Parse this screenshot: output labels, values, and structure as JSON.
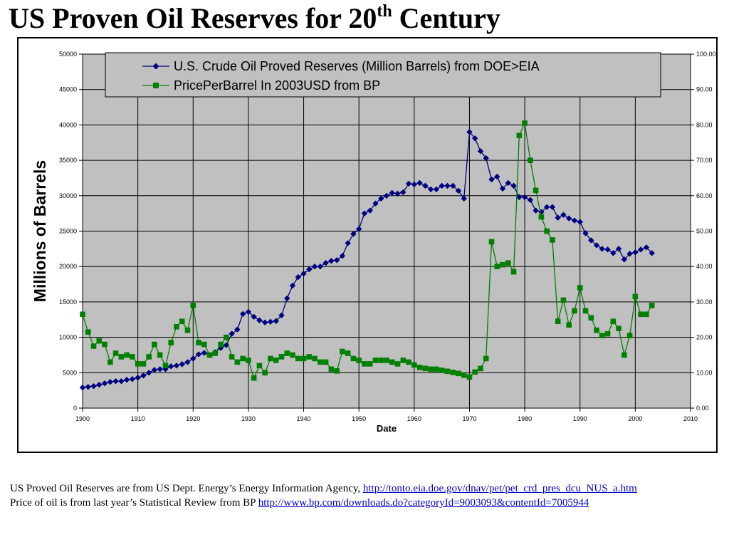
{
  "title": {
    "main": "US Proven Oil Reserves for 20",
    "sup": "th",
    "end": " Century"
  },
  "caption": {
    "line1_text": "US Proved Oil Reserves are from US Dept. Energy’s Energy Information Agency, ",
    "line1_link": "http://tonto.eia.doe.gov/dnav/pet/pet_crd_pres_dcu_NUS_a.htm",
    "line2_text": "Price of oil is from last year’s Statistical Review from BP ",
    "line2_link": "http://www.bp.com/downloads.do?categoryId=9003093&contentId=7005944"
  },
  "chart_data": {
    "type": "line",
    "title": "",
    "xlabel": "Date",
    "ylabel": "Millions of Barrels",
    "xlim": [
      1900,
      2010
    ],
    "ylim": [
      0,
      50000
    ],
    "y2lim": [
      0,
      100
    ],
    "x_ticks": [
      "1900",
      "1910",
      "1920",
      "1930",
      "1940",
      "1950",
      "1960",
      "1970",
      "1980",
      "1990",
      "2000",
      "2010"
    ],
    "y_ticks": [
      "0",
      "5000",
      "10000",
      "15000",
      "20000",
      "25000",
      "30000",
      "35000",
      "40000",
      "45000",
      "50000"
    ],
    "y2_ticks": [
      "0.00",
      "10.00",
      "20.00",
      "30.00",
      "40.00",
      "50.00",
      "60.00",
      "70.00",
      "80.00",
      "90.00",
      "100.00"
    ],
    "grid": true,
    "plot_background": "#c0c0c0",
    "legend_position": "top",
    "series": [
      {
        "name": "U.S. Crude Oil Proved Reserves (Million Barrels) from DOE>EIA",
        "axis": "left",
        "color": "#000080",
        "marker": "diamond",
        "x": [
          1900,
          1901,
          1902,
          1903,
          1904,
          1905,
          1906,
          1907,
          1908,
          1909,
          1910,
          1911,
          1912,
          1913,
          1914,
          1915,
          1916,
          1917,
          1918,
          1919,
          1920,
          1921,
          1922,
          1923,
          1924,
          1925,
          1926,
          1927,
          1928,
          1929,
          1930,
          1931,
          1932,
          1933,
          1934,
          1935,
          1936,
          1937,
          1938,
          1939,
          1940,
          1941,
          1942,
          1943,
          1944,
          1945,
          1946,
          1947,
          1948,
          1949,
          1950,
          1951,
          1952,
          1953,
          1954,
          1955,
          1956,
          1957,
          1958,
          1959,
          1960,
          1961,
          1962,
          1963,
          1964,
          1965,
          1966,
          1967,
          1968,
          1969,
          1970,
          1971,
          1972,
          1973,
          1974,
          1975,
          1976,
          1977,
          1978,
          1979,
          1980,
          1981,
          1982,
          1983,
          1984,
          1985,
          1986,
          1987,
          1988,
          1989,
          1990,
          1991,
          1992,
          1993,
          1994,
          1995,
          1996,
          1997,
          1998,
          1999,
          2000,
          2001,
          2002,
          2003
        ],
        "values": [
          2900,
          3000,
          3100,
          3300,
          3500,
          3700,
          3800,
          3800,
          4000,
          4100,
          4300,
          4600,
          5000,
          5400,
          5500,
          5500,
          5900,
          6000,
          6200,
          6500,
          7000,
          7600,
          7800,
          7500,
          7900,
          8500,
          8900,
          10500,
          11100,
          13300,
          13600,
          12900,
          12400,
          12100,
          12200,
          12300,
          13100,
          15500,
          17300,
          18500,
          19000,
          19600,
          20000,
          20000,
          20500,
          20800,
          20900,
          21500,
          23300,
          24600,
          25300,
          27500,
          27900,
          28900,
          29600,
          30000,
          30400,
          30300,
          30500,
          31700,
          31600,
          31800,
          31400,
          30900,
          30900,
          31400,
          31400,
          31400,
          30700,
          29600,
          39000,
          38100,
          36300,
          35300,
          32300,
          32700,
          31000,
          31800,
          31400,
          29800,
          29800,
          29400,
          27900,
          27700,
          28400,
          28400,
          26900,
          27300,
          26800,
          26500,
          26300,
          24700,
          23700,
          23000,
          22500,
          22400,
          21900,
          22500,
          21000,
          21800,
          22000,
          22400,
          22700,
          21900
        ]
      },
      {
        "name": "PricePerBarrel In 2003USD from BP",
        "axis": "right",
        "color": "#008000",
        "marker": "square",
        "x": [
          1900,
          1901,
          1902,
          1903,
          1904,
          1905,
          1906,
          1907,
          1908,
          1909,
          1910,
          1911,
          1912,
          1913,
          1914,
          1915,
          1916,
          1917,
          1918,
          1919,
          1920,
          1921,
          1922,
          1923,
          1924,
          1925,
          1926,
          1927,
          1928,
          1929,
          1930,
          1931,
          1932,
          1933,
          1934,
          1935,
          1936,
          1937,
          1938,
          1939,
          1940,
          1941,
          1942,
          1943,
          1944,
          1945,
          1946,
          1947,
          1948,
          1949,
          1950,
          1951,
          1952,
          1953,
          1954,
          1955,
          1956,
          1957,
          1958,
          1959,
          1960,
          1961,
          1962,
          1963,
          1964,
          1965,
          1966,
          1967,
          1968,
          1969,
          1970,
          1971,
          1972,
          1973,
          1974,
          1975,
          1976,
          1977,
          1978,
          1979,
          1980,
          1981,
          1982,
          1983,
          1984,
          1985,
          1986,
          1987,
          1988,
          1989,
          1990,
          1991,
          1992,
          1993,
          1994,
          1995,
          1996,
          1997,
          1998,
          1999,
          2000,
          2001,
          2002,
          2003
        ],
        "values": [
          26.5,
          21.5,
          17.5,
          19,
          18,
          13,
          15.5,
          14.5,
          15,
          14.5,
          12.5,
          12.5,
          14.5,
          18,
          15,
          12,
          18.5,
          23,
          24.5,
          22,
          29,
          18.5,
          18,
          15,
          15.5,
          18,
          20,
          14.5,
          13,
          14,
          13.5,
          8.5,
          12,
          10,
          14,
          13.5,
          14.5,
          15.5,
          15,
          14,
          14,
          14.5,
          14,
          13,
          13,
          11,
          10.5,
          16,
          15.5,
          14,
          13.5,
          12.5,
          12.5,
          13.5,
          13.5,
          13.5,
          13,
          12.5,
          13.5,
          13,
          12.2,
          11.5,
          11.2,
          11,
          11,
          10.7,
          10.4,
          10.1,
          9.8,
          9.3,
          8.8,
          10.2,
          11.2,
          14,
          47,
          40,
          40.5,
          41,
          38.5,
          77,
          80.5,
          70,
          61.5,
          54,
          50,
          47.5,
          24.5,
          30.5,
          23.5,
          27.5,
          34,
          27.5,
          25.5,
          22,
          20.5,
          21,
          24.5,
          22.5,
          15,
          20.5,
          31.5,
          26.5,
          26.5,
          29
        ]
      }
    ]
  }
}
